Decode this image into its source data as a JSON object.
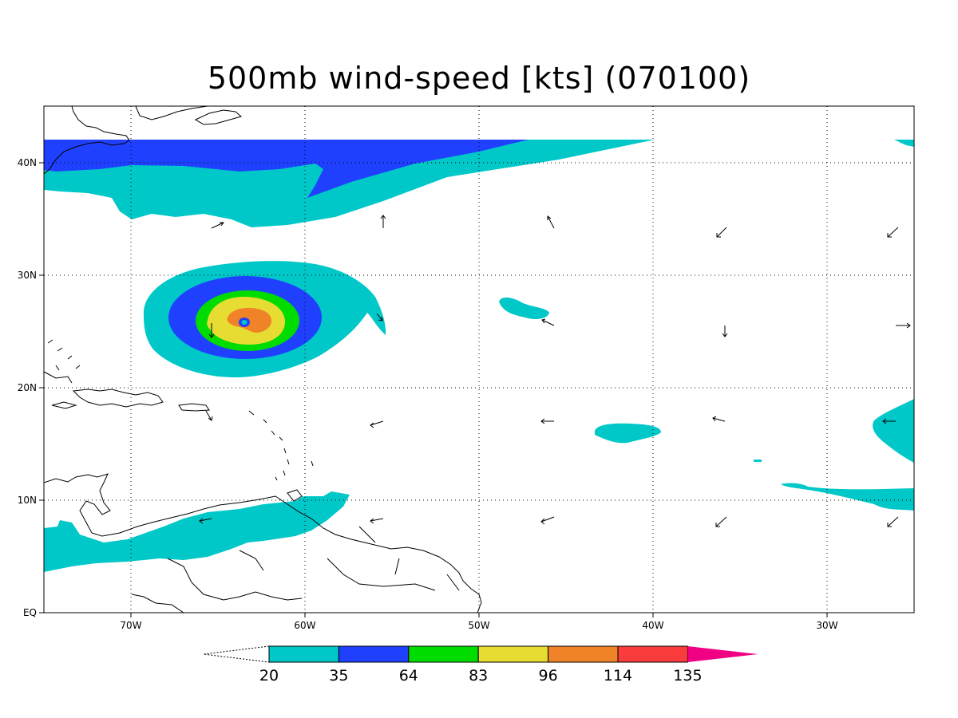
{
  "title": "500mb wind-speed [kts] (070100)",
  "map": {
    "lon_range": [
      -75,
      -25
    ],
    "lat_range": [
      0,
      45
    ],
    "lat_labels": [
      "EQ",
      "10N",
      "20N",
      "30N",
      "40N"
    ],
    "lon_labels": [
      "70W",
      "60W",
      "50W",
      "40W",
      "30W"
    ],
    "gridlines": "dotted"
  },
  "colorbar": {
    "boundaries": [
      "20",
      "35",
      "64",
      "83",
      "96",
      "114",
      "135"
    ],
    "colors": [
      "#00c8c8",
      "#2040ff",
      "#00dc00",
      "#e6dc32",
      "#f08228",
      "#fa3c3c",
      "#f00082"
    ]
  },
  "wind_field": {
    "variable": "500mb wind speed",
    "units": "kts",
    "cyclone_center": {
      "lon": -63,
      "lat": 25.8
    }
  }
}
